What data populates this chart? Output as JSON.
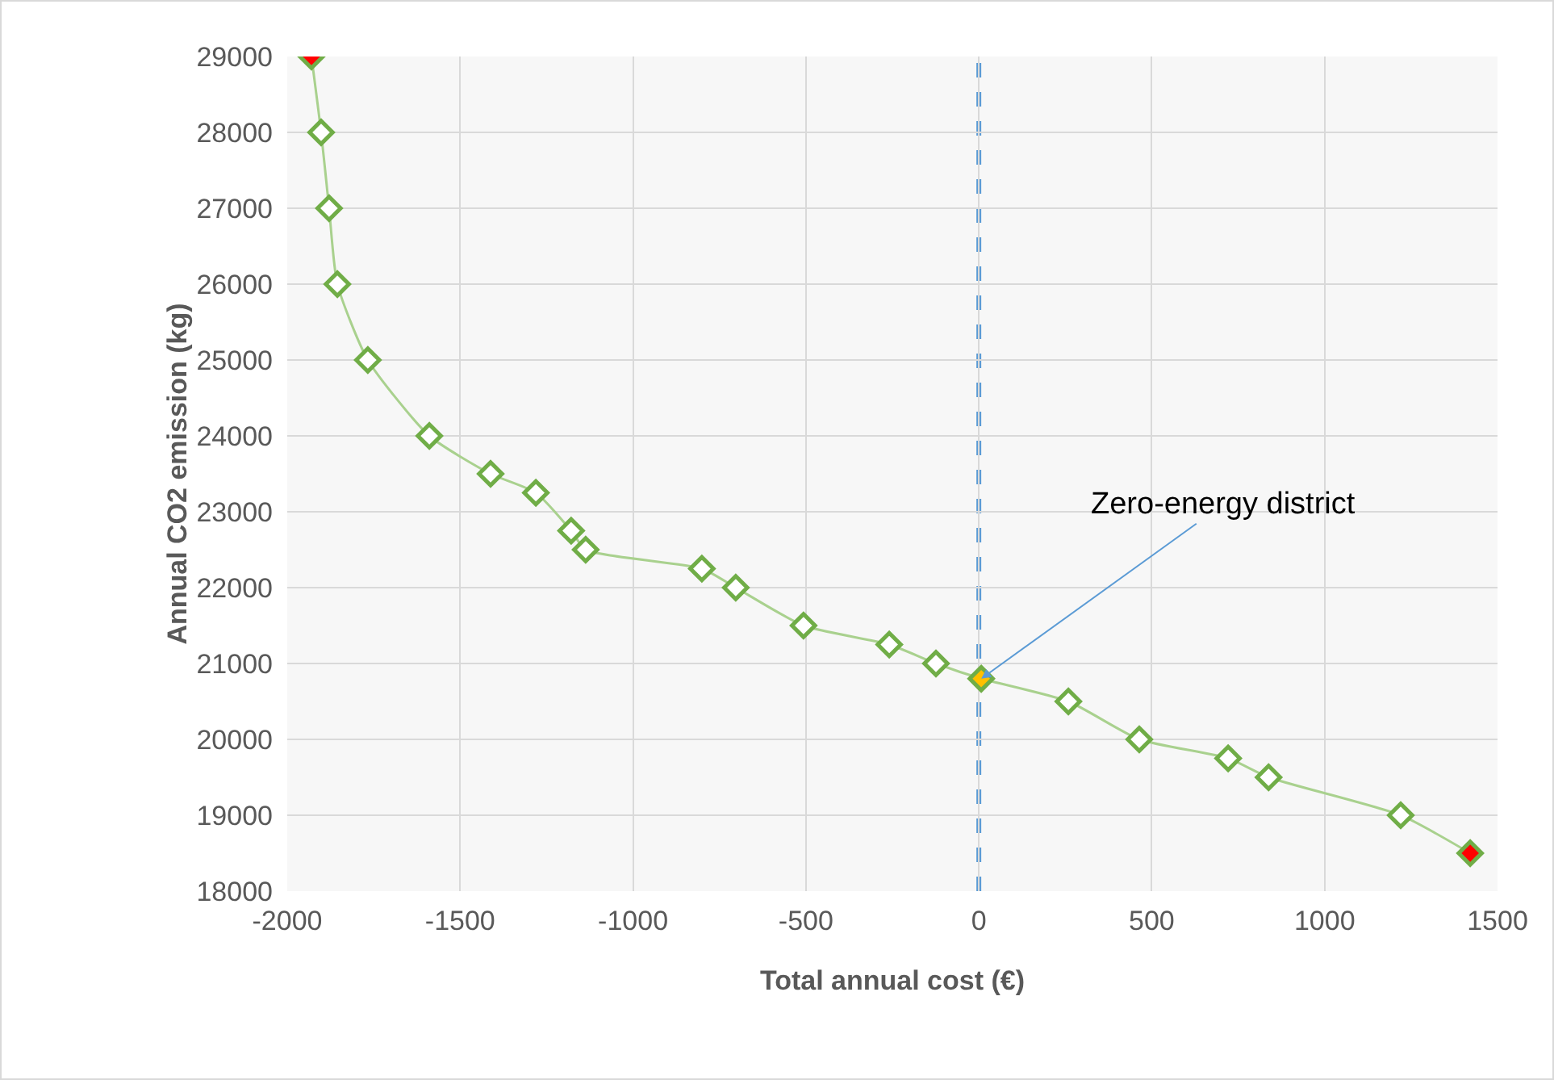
{
  "chart_data": {
    "type": "line",
    "xlabel": "Total annual cost (€)",
    "ylabel": "Annual CO2 emission (kg)",
    "xlim": [
      -2000,
      1500
    ],
    "xticks": [
      -2000,
      -1500,
      -1000,
      -500,
      0,
      500,
      1000,
      1500
    ],
    "ylim": [
      18000,
      29000
    ],
    "yticks": [
      18000,
      19000,
      20000,
      21000,
      22000,
      23000,
      24000,
      25000,
      26000,
      27000,
      28000,
      29000
    ],
    "grid": true,
    "marker": "diamond",
    "line_style": "solid",
    "series": [
      {
        "color": "#70ad47",
        "x": [
          -1930,
          -1902,
          -1879,
          -1855,
          -1767,
          -1589,
          -1412,
          -1281,
          -1179,
          -1137,
          -801,
          -703,
          -507,
          -259,
          -124,
          7,
          259,
          464,
          721,
          838,
          1220,
          1421
        ],
        "values": [
          29000,
          28000,
          27000,
          26000,
          25000,
          24000,
          23500,
          23250,
          22750,
          22500,
          22250,
          22000,
          21500,
          21250,
          21000,
          20800,
          20500,
          20000,
          19750,
          19500,
          19000,
          18500
        ],
        "colors": [
          "#ff0000",
          "#ffffff",
          "#ffffff",
          "#ffffff",
          "#ffffff",
          "#ffffff",
          "#ffffff",
          "#ffffff",
          "#ffffff",
          "#ffffff",
          "#ffffff",
          "#ffffff",
          "#ffffff",
          "#ffffff",
          "#ffffff",
          "#ffc000",
          "#ffffff",
          "#ffffff",
          "#ffffff",
          "#ffffff",
          "#ffffff",
          "#ff0000"
        ]
      }
    ],
    "ref_lines": [
      {
        "axis": "x",
        "value": 0,
        "color": "#5b9bd5",
        "line_style": "dashed"
      }
    ],
    "annotations": [
      {
        "text": "Zero-energy district",
        "x": 7,
        "y": 20800
      }
    ]
  }
}
